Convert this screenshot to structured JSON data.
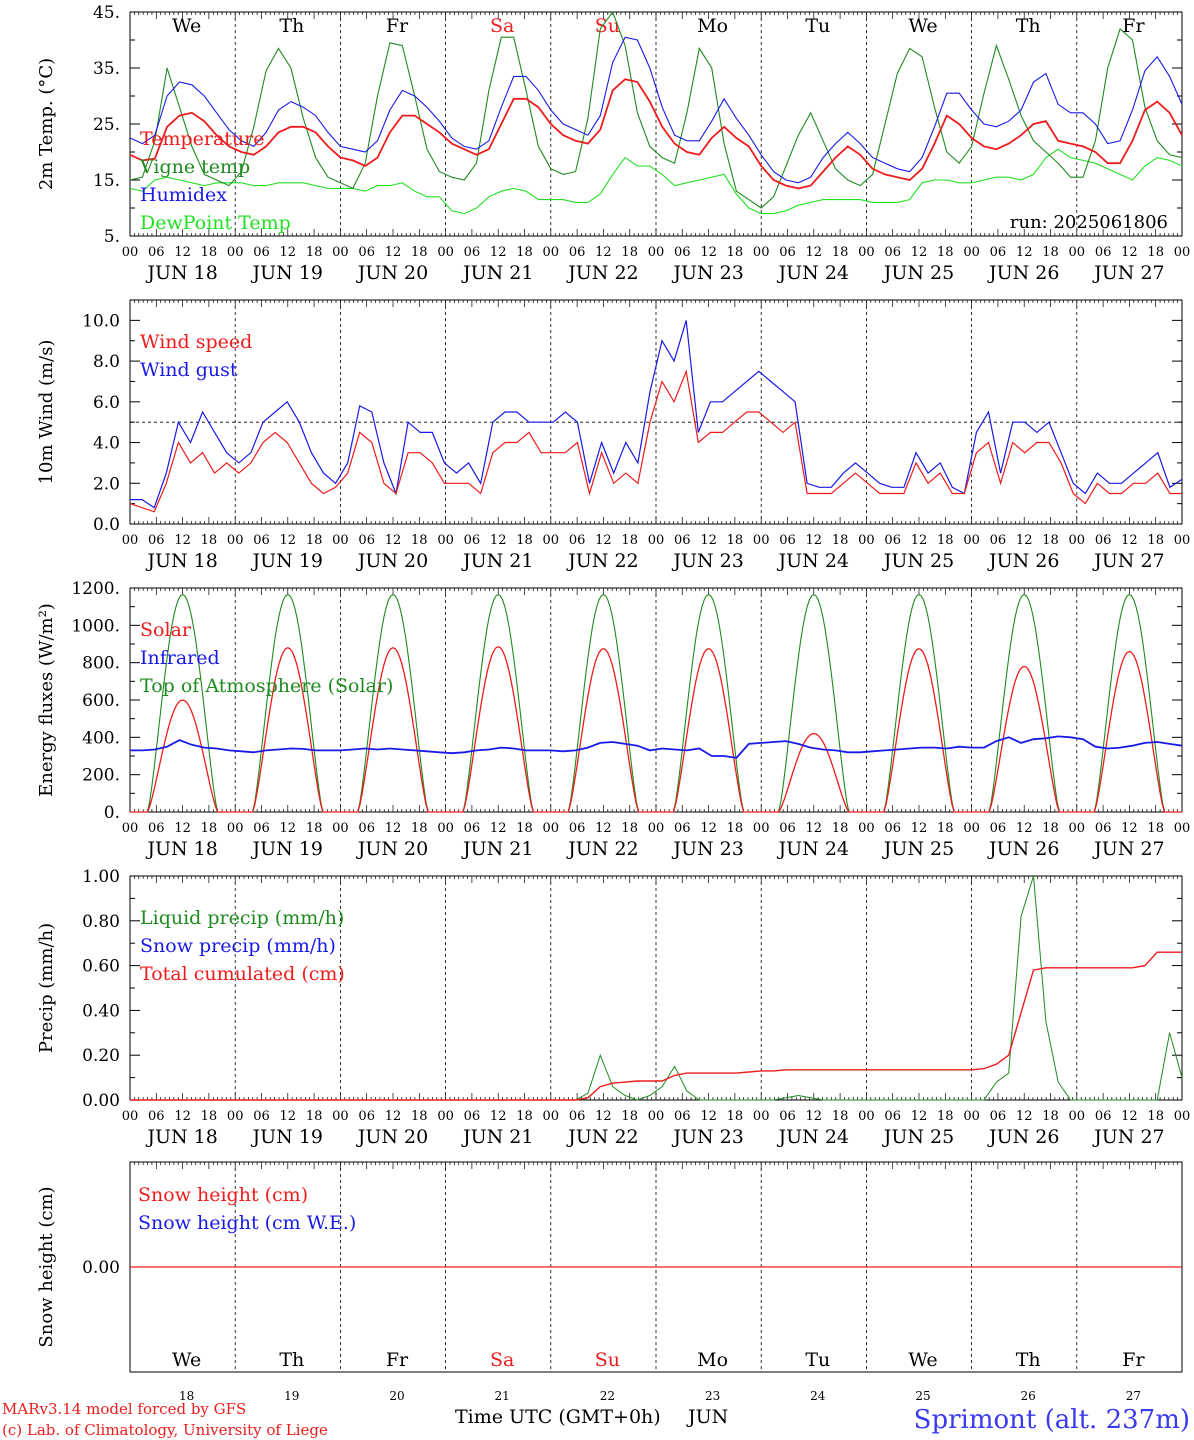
{
  "colors": {
    "red": "#ee1c1c",
    "blue": "#1a1ae6",
    "darkgreen": "#1f8a1f",
    "lightgreen": "#22e022",
    "black": "#000000",
    "station": "#3a3aee"
  },
  "days": {
    "dates": [
      "JUN 18",
      "JUN 19",
      "JUN 20",
      "JUN 21",
      "JUN 22",
      "JUN 23",
      "JUN 24",
      "JUN 25",
      "JUN 26",
      "JUN 27"
    ],
    "weekdays": [
      "We",
      "Th",
      "Fr",
      "Sa",
      "Su",
      "Mo",
      "Tu",
      "We",
      "Th",
      "Fr"
    ],
    "weekday_colors": [
      "#000000",
      "#000000",
      "#000000",
      "#ee1c1c",
      "#ee1c1c",
      "#000000",
      "#000000",
      "#000000",
      "#000000",
      "#000000"
    ],
    "day_numbers": [
      "18",
      "19",
      "20",
      "21",
      "22",
      "23",
      "24",
      "25",
      "26",
      "27"
    ],
    "hour_ticks": [
      "00",
      "06",
      "12",
      "18"
    ],
    "end_tick": "00"
  },
  "footer": {
    "model_line": "MARv3.14 model forced by GFS",
    "lab_line": "(c) Lab. of Climatology, University of Liege",
    "time_label": "Time UTC (GMT+0h)",
    "month": "JUN",
    "station": "Sprimont (alt. 237m)"
  },
  "chart_data": [
    {
      "type": "line",
      "ylabel": "2m Temp. (°C)",
      "ylim": [
        5,
        45
      ],
      "y_ticks": [
        "5.",
        "15.",
        "25.",
        "35.",
        "45."
      ],
      "run_label": "run: 2025061806",
      "series": [
        {
          "name": "Temperature",
          "color": "#ee1c1c",
          "values": [
            19.5,
            18.5,
            18.8,
            24.5,
            26.5,
            27.0,
            25.5,
            23.0,
            21.0,
            20.0,
            19.5,
            21.0,
            23.5,
            24.5,
            24.5,
            23.5,
            21.0,
            19.0,
            18.5,
            17.5,
            19.0,
            23.5,
            26.5,
            26.5,
            25.0,
            23.5,
            21.5,
            20.5,
            19.5,
            20.5,
            25.0,
            29.5,
            29.5,
            28.0,
            25.0,
            23.0,
            22.0,
            21.5,
            24.0,
            31.0,
            33.0,
            32.5,
            29.0,
            24.5,
            21.5,
            20.0,
            19.5,
            22.5,
            24.5,
            22.5,
            21.0,
            17.5,
            15.0,
            14.0,
            13.5,
            14.0,
            16.5,
            19.0,
            21.0,
            19.5,
            17.0,
            16.0,
            15.5,
            15.0,
            17.0,
            21.5,
            26.5,
            25.0,
            22.5,
            21.0,
            20.5,
            21.5,
            23.0,
            25.0,
            25.5,
            22.0,
            21.5,
            21.0,
            20.0,
            18.0,
            18.0,
            22.0,
            27.5,
            29.0,
            27.0,
            23.0
          ]
        },
        {
          "name": "Vigne temp",
          "color": "#1f8a1f",
          "values": [
            15.0,
            15.5,
            22.0,
            35.0,
            28.0,
            21.0,
            16.0,
            15.0,
            14.0,
            16.5,
            24.5,
            34.5,
            38.5,
            35.0,
            26.0,
            19.0,
            15.5,
            14.5,
            13.5,
            18.0,
            30.0,
            39.5,
            39.0,
            30.0,
            20.5,
            16.5,
            15.5,
            15.0,
            18.0,
            31.0,
            40.5,
            40.5,
            31.0,
            21.0,
            17.0,
            16.0,
            16.5,
            26.0,
            42.0,
            46.0,
            39.0,
            27.0,
            21.0,
            19.0,
            18.0,
            27.0,
            38.5,
            35.0,
            21.5,
            13.0,
            11.5,
            10.0,
            12.0,
            17.5,
            23.0,
            27.0,
            22.0,
            17.0,
            15.0,
            14.0,
            16.0,
            25.0,
            34.0,
            38.5,
            37.0,
            28.0,
            20.0,
            18.0,
            21.0,
            30.5,
            39.0,
            33.0,
            26.5,
            22.0,
            20.0,
            18.0,
            15.5,
            15.5,
            22.0,
            35.0,
            42.0,
            40.0,
            28.0,
            22.0,
            19.5,
            19.0
          ]
        },
        {
          "name": "Humidex",
          "color": "#1a1ae6",
          "values": [
            22.5,
            21.5,
            23.0,
            30.0,
            32.5,
            32.0,
            30.0,
            27.0,
            24.0,
            22.0,
            21.0,
            23.5,
            27.5,
            29.0,
            28.0,
            26.5,
            23.5,
            21.0,
            20.5,
            20.0,
            22.0,
            27.5,
            31.0,
            30.0,
            28.0,
            25.5,
            22.5,
            21.0,
            20.5,
            22.0,
            28.0,
            33.5,
            33.5,
            31.0,
            27.5,
            25.0,
            24.0,
            23.0,
            26.5,
            36.0,
            40.5,
            40.0,
            35.0,
            28.0,
            23.0,
            22.0,
            22.0,
            25.5,
            29.5,
            26.0,
            23.0,
            19.5,
            16.5,
            15.0,
            14.5,
            15.5,
            19.0,
            21.5,
            23.5,
            21.5,
            19.0,
            18.0,
            17.0,
            16.5,
            19.0,
            24.5,
            30.5,
            30.5,
            27.5,
            25.0,
            24.5,
            25.5,
            27.5,
            32.5,
            34.0,
            28.5,
            27.0,
            27.0,
            25.0,
            21.5,
            22.0,
            27.5,
            34.5,
            37.0,
            33.5,
            28.5
          ]
        },
        {
          "name": "DewPoint Temp",
          "color": "#22e022",
          "values": [
            13.5,
            13.0,
            15.0,
            15.5,
            15.0,
            14.5,
            14.0,
            14.5,
            14.5,
            14.5,
            14.0,
            14.0,
            14.5,
            14.5,
            14.5,
            14.0,
            13.5,
            13.5,
            13.5,
            13.0,
            14.0,
            14.0,
            14.5,
            13.0,
            12.0,
            12.0,
            9.5,
            9.0,
            10.0,
            12.0,
            13.0,
            13.5,
            13.0,
            11.5,
            11.5,
            11.5,
            11.0,
            11.0,
            12.5,
            16.0,
            19.0,
            17.5,
            17.5,
            16.0,
            14.0,
            14.5,
            15.0,
            15.5,
            16.0,
            12.5,
            10.0,
            9.0,
            9.0,
            9.5,
            10.5,
            11.0,
            11.5,
            11.5,
            11.5,
            11.5,
            11.0,
            11.0,
            11.0,
            11.5,
            14.5,
            15.0,
            15.0,
            14.5,
            14.5,
            15.0,
            15.5,
            15.5,
            15.0,
            16.0,
            19.0,
            20.5,
            19.0,
            18.5,
            18.0,
            17.0,
            16.0,
            15.0,
            17.5,
            19.0,
            18.5,
            17.5
          ]
        }
      ]
    },
    {
      "type": "line",
      "ylabel": "10m Wind (m/s)",
      "ylim": [
        0,
        11
      ],
      "y_ticks": [
        "0.0",
        "2.0",
        "4.0",
        "6.0",
        "8.0",
        "10.0"
      ],
      "reference_line": 5,
      "series": [
        {
          "name": "Wind speed",
          "color": "#ee1c1c",
          "values": [
            1.0,
            0.8,
            0.6,
            2.0,
            4.0,
            3.0,
            3.5,
            2.5,
            3.0,
            2.5,
            3.0,
            4.0,
            4.5,
            4.0,
            3.0,
            2.0,
            1.5,
            1.8,
            2.5,
            4.5,
            4.0,
            2.0,
            1.5,
            3.5,
            3.5,
            3.0,
            2.0,
            2.0,
            2.0,
            1.5,
            3.5,
            4.0,
            4.0,
            4.5,
            3.5,
            3.5,
            3.5,
            4.0,
            1.5,
            3.5,
            2.0,
            2.5,
            2.0,
            5.0,
            7.0,
            6.0,
            7.5,
            4.0,
            4.5,
            4.5,
            5.0,
            5.5,
            5.5,
            5.0,
            4.5,
            5.0,
            1.5,
            1.5,
            1.5,
            2.0,
            2.5,
            2.0,
            1.5,
            1.5,
            1.5,
            3.0,
            2.0,
            2.5,
            1.5,
            1.5,
            3.5,
            4.0,
            2.0,
            4.0,
            3.5,
            4.0,
            4.0,
            3.0,
            1.5,
            1.0,
            2.0,
            1.5,
            1.5,
            2.0,
            2.0,
            2.5,
            1.5,
            1.5
          ]
        },
        {
          "name": "Wind gust",
          "color": "#1a1ae6",
          "values": [
            1.2,
            1.2,
            0.8,
            2.5,
            5.0,
            4.0,
            5.5,
            4.5,
            3.5,
            3.0,
            3.5,
            5.0,
            5.5,
            6.0,
            5.0,
            3.5,
            2.5,
            2.0,
            3.0,
            5.8,
            5.5,
            3.0,
            1.5,
            5.0,
            4.5,
            4.5,
            3.0,
            2.5,
            3.0,
            2.0,
            5.0,
            5.5,
            5.5,
            5.0,
            5.0,
            5.0,
            5.5,
            5.0,
            2.0,
            4.0,
            2.5,
            4.0,
            3.0,
            6.5,
            9.0,
            8.0,
            10.0,
            4.5,
            6.0,
            6.0,
            6.5,
            7.0,
            7.5,
            7.0,
            6.5,
            6.0,
            2.0,
            1.8,
            1.8,
            2.5,
            3.0,
            2.5,
            2.0,
            1.8,
            1.8,
            3.5,
            2.5,
            3.0,
            1.8,
            1.5,
            4.5,
            5.5,
            2.5,
            5.0,
            5.0,
            4.5,
            5.0,
            3.5,
            2.0,
            1.5,
            2.5,
            2.0,
            2.0,
            2.5,
            3.0,
            3.5,
            1.8,
            2.2
          ]
        }
      ]
    },
    {
      "type": "line",
      "ylabel": "Energy fluxes (W/m²)",
      "ylim": [
        0,
        1200
      ],
      "y_ticks": [
        "0.",
        "200.",
        "400.",
        "600.",
        "800.",
        "1000.",
        "1200."
      ],
      "series": [
        {
          "name": "Solar",
          "color": "#ee1c1c",
          "day_peaks": [
            600,
            880,
            880,
            885,
            875,
            875,
            420,
            875,
            780,
            860
          ]
        },
        {
          "name": "Infrared",
          "color": "#1a1ae6",
          "values": [
            330,
            330,
            335,
            350,
            385,
            360,
            345,
            340,
            330,
            325,
            320,
            330,
            335,
            340,
            338,
            330,
            330,
            330,
            335,
            340,
            335,
            340,
            335,
            330,
            325,
            320,
            315,
            320,
            330,
            335,
            345,
            340,
            330,
            330,
            330,
            325,
            330,
            345,
            370,
            375,
            365,
            355,
            330,
            340,
            335,
            330,
            340,
            300,
            300,
            290,
            365,
            370,
            375,
            380,
            365,
            345,
            335,
            330,
            320,
            320,
            325,
            330,
            335,
            340,
            345,
            345,
            340,
            350,
            345,
            345,
            380,
            400,
            370,
            390,
            395,
            405,
            400,
            390,
            350,
            340,
            345,
            355,
            370,
            375,
            365,
            355
          ]
        },
        {
          "name": "Top of Atmosphere (Solar)",
          "color": "#1f8a1f",
          "peak": 1165
        }
      ]
    },
    {
      "type": "line",
      "ylabel": "Precip (mm/h)",
      "ylim": [
        0,
        1
      ],
      "y_ticks": [
        "0.00",
        "0.20",
        "0.40",
        "0.60",
        "0.80",
        "1.00"
      ],
      "series": [
        {
          "name": "Liquid precip (mm/h)",
          "color": "#1f8a1f",
          "values": [
            0,
            0,
            0,
            0,
            0,
            0,
            0,
            0,
            0,
            0,
            0,
            0,
            0,
            0,
            0,
            0,
            0,
            0,
            0,
            0,
            0,
            0,
            0,
            0,
            0,
            0,
            0,
            0,
            0,
            0,
            0,
            0,
            0,
            0,
            0,
            0,
            0,
            0.03,
            0.2,
            0.06,
            0.02,
            0,
            0.02,
            0.06,
            0.15,
            0.04,
            0,
            0,
            0,
            0,
            0,
            0,
            0,
            0.01,
            0.02,
            0.01,
            0,
            0,
            0,
            0,
            0,
            0,
            0,
            0,
            0,
            0,
            0,
            0,
            0,
            0,
            0.08,
            0.12,
            0.82,
            1.0,
            0.35,
            0.08,
            0,
            0,
            0,
            0,
            0,
            0,
            0,
            0,
            0.3,
            0.1
          ]
        },
        {
          "name": "Snow precip (mm/h)",
          "color": "#1a1ae6",
          "values": []
        },
        {
          "name": "Total cumulated (cm)",
          "color": "#ee1c1c",
          "values": [
            0,
            0,
            0,
            0,
            0,
            0,
            0,
            0,
            0,
            0,
            0,
            0,
            0,
            0,
            0,
            0,
            0,
            0,
            0,
            0,
            0,
            0,
            0,
            0,
            0,
            0,
            0,
            0,
            0,
            0,
            0,
            0,
            0,
            0,
            0,
            0,
            0,
            0.01,
            0.06,
            0.075,
            0.08,
            0.085,
            0.085,
            0.085,
            0.11,
            0.12,
            0.12,
            0.12,
            0.12,
            0.12,
            0.125,
            0.13,
            0.13,
            0.135,
            0.135,
            0.135,
            0.135,
            0.135,
            0.135,
            0.135,
            0.135,
            0.135,
            0.135,
            0.135,
            0.135,
            0.135,
            0.135,
            0.135,
            0.135,
            0.14,
            0.16,
            0.2,
            0.39,
            0.58,
            0.59,
            0.59,
            0.59,
            0.59,
            0.59,
            0.59,
            0.59,
            0.59,
            0.6,
            0.66,
            0.66,
            0.66
          ]
        }
      ]
    },
    {
      "type": "line",
      "ylabel": "Snow height (cm)",
      "ylim": [
        -1,
        1
      ],
      "y_ticks": [
        "0.00"
      ],
      "series": [
        {
          "name": "Snow height (cm)",
          "color": "#ee1c1c",
          "values": [
            0,
            0
          ]
        },
        {
          "name": "Snow height (cm W.E.)",
          "color": "#1a1ae6",
          "values": []
        }
      ]
    }
  ]
}
